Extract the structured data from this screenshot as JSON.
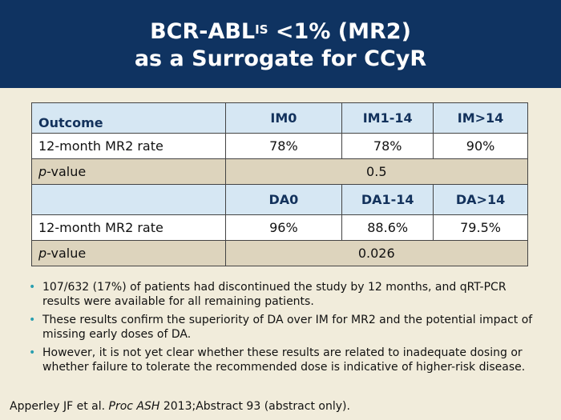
{
  "title": {
    "line1_main": "BCR-ABL",
    "line1_sup": "IS",
    "line1_rest": " <1% (MR2)",
    "line2": "as a Surrogate for CCyR"
  },
  "table": {
    "header1": [
      "Outcome",
      "IM0",
      "IM1-14",
      "IM>14"
    ],
    "row1": [
      "12-month MR2 rate",
      "78%",
      "78%",
      "90%"
    ],
    "pvalue1": {
      "label_italic": "p",
      "label_rest": "-value",
      "value": "0.5"
    },
    "header2": [
      "",
      "DA0",
      "DA1-14",
      "DA>14"
    ],
    "row2": [
      "12-month MR2 rate",
      "96%",
      "88.6%",
      "79.5%"
    ],
    "pvalue2": {
      "label_italic": "p",
      "label_rest": "-value",
      "value": "0.026"
    }
  },
  "notes": [
    "107/632 (17%) of patients had discontinued the study by 12 months, and qRT-PCR results were available for all remaining patients.",
    "These results confirm the superiority of DA over IM for MR2 and the potential impact of missing early doses of DA.",
    "However, it is not yet clear whether these results are related to inadequate dosing or whether failure to tolerate the recommended dose is indicative of higher-risk disease."
  ],
  "citation": {
    "authors": "Apperley JF et al. ",
    "journal": "Proc ASH",
    "rest": " 2013;Abstract 93 (abstract only)."
  },
  "colors": {
    "header_bg": "#0f3361",
    "page_bg": "#f1ecdb",
    "table_header_bg": "#d6e7f3",
    "table_tan_bg": "#ddd4bd",
    "bullet": "#2a9fb0"
  }
}
